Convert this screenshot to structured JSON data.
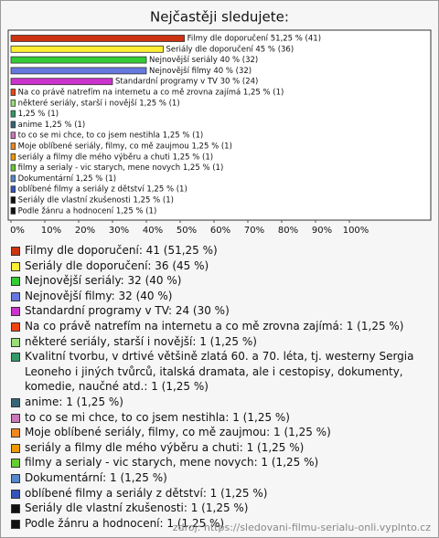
{
  "chart_data": {
    "type": "bar",
    "orientation": "horizontal",
    "title": "Nejčastěji sledujete:",
    "categories": [
      "Filmy dle doporučení",
      "Seriály dle doporučení",
      "Nejnovější seriály",
      "Nejnovější filmy",
      "Standardní programy v TV",
      "Na co právě natrefím na internetu a co mě zrovna zajímá",
      "některé seriály, starší i novější",
      "Kvalitní tvorbu, v drtivé většině zlatá 60. a 70. léta, tj. westerny Sergia Leoneho i jiných tvůrců, italská dramata, ale i cestopisy, dokumenty, komedie, naučné atd.",
      "anime",
      "to co se mi chce, to co jsem nestihla",
      "Moje oblíbené seriály, filmy, co mě zaujmou",
      "seriály a filmy dle mého výběru a chuti",
      "filmy a serialy - vic starych, mene novych",
      "Dokumentární",
      "oblíbené filmy a seriály z dětství",
      "Seriály dle vlastní zkušenosti",
      "Podle žánru a hodnocení"
    ],
    "values": [
      51.25,
      45,
      40,
      40,
      30,
      1.25,
      1.25,
      1.25,
      1.25,
      1.25,
      1.25,
      1.25,
      1.25,
      1.25,
      1.25,
      1.25,
      1.25
    ],
    "value_labels": [
      "Filmy dle doporučení 51,25 % (41)",
      "Seriály dle doporučení 45 % (36)",
      "Nejnovější seriály 40 % (32)",
      "Nejnovější filmy 40 % (32)",
      "Standardní programy v TV 30 % (24)",
      "Na co právě natrefím na internetu a co mě zrovna zajímá 1,25 % (1)",
      "některé seriály, starší i novější 1,25 % (1)",
      "1,25 % (1)",
      "anime 1,25 % (1)",
      "to co se mi chce, to co jsem nestihla 1,25 % (1)",
      "Moje oblíbené seriály, filmy, co mě zaujmou 1,25 % (1)",
      "seriály a filmy dle mého výběru a chuti 1,25 % (1)",
      "filmy a serialy - vic starych, mene novych 1,25 % (1)",
      "Dokumentární 1,25 % (1)",
      "oblíbené filmy a seriály z dětství 1,25 % (1)",
      "Seriály dle vlastní zkušenosti 1,25 % (1)",
      "Podle žánru a hodnocení 1,25 % (1)"
    ],
    "legend_labels": [
      "Filmy dle doporučení: 41 (51,25 %)",
      "Seriály dle doporučení: 36 (45 %)",
      "Nejnovější seriály: 32 (40 %)",
      "Nejnovější filmy: 32 (40 %)",
      "Standardní programy v TV: 24 (30 %)",
      "Na co právě natrefím na internetu a co mě zrovna zajímá: 1 (1,25 %)",
      "některé seriály, starší i novější: 1 (1,25 %)",
      "Kvalitní tvorbu, v drtivé většině zlatá 60. a 70. léta, tj. westerny Sergia Leoneho i jiných tvůrců, italská dramata, ale i cestopisy, dokumenty, komedie, naučné atd.: 1 (1,25 %)",
      "anime: 1 (1,25 %)",
      "to co se mi chce, to co jsem nestihla: 1 (1,25 %)",
      "Moje oblíbené seriály, filmy, co mě zaujmou: 1 (1,25 %)",
      "seriály a filmy dle mého výběru a chuti: 1 (1,25 %)",
      "filmy a serialy - vic starych, mene novych: 1 (1,25 %)",
      "Dokumentární: 1 (1,25 %)",
      "oblíbené filmy a seriály z dětství: 1 (1,25 %)",
      "Seriály dle vlastní zkušenosti: 1 (1,25 %)",
      "Podle žánru a hodnocení: 1 (1,25 %)"
    ],
    "colors": [
      "#cc3311",
      "#ffee33",
      "#33cc33",
      "#6677dd",
      "#cc33cc",
      "#ee4411",
      "#99dd77",
      "#339966",
      "#336677",
      "#cc77bb",
      "#ee8822",
      "#ee9900",
      "#66cc33",
      "#5588cc",
      "#3355bb",
      "#111111",
      "#111111"
    ],
    "xlim": [
      0,
      100
    ],
    "xticks": [
      {
        "value": 0,
        "label": "0%"
      },
      {
        "value": 10,
        "label": "10%"
      },
      {
        "value": 20,
        "label": "20%"
      },
      {
        "value": 30,
        "label": "30%"
      },
      {
        "value": 40,
        "label": "40%"
      },
      {
        "value": 50,
        "label": "50%"
      },
      {
        "value": 60,
        "label": "60%"
      },
      {
        "value": 70,
        "label": "70%"
      },
      {
        "value": 80,
        "label": "80%"
      },
      {
        "value": 90,
        "label": "90%"
      },
      {
        "value": 100,
        "label": "100%"
      }
    ],
    "source": "zdroj: https://sledovani-filmu-serialu-onli.vyplnto.cz"
  }
}
